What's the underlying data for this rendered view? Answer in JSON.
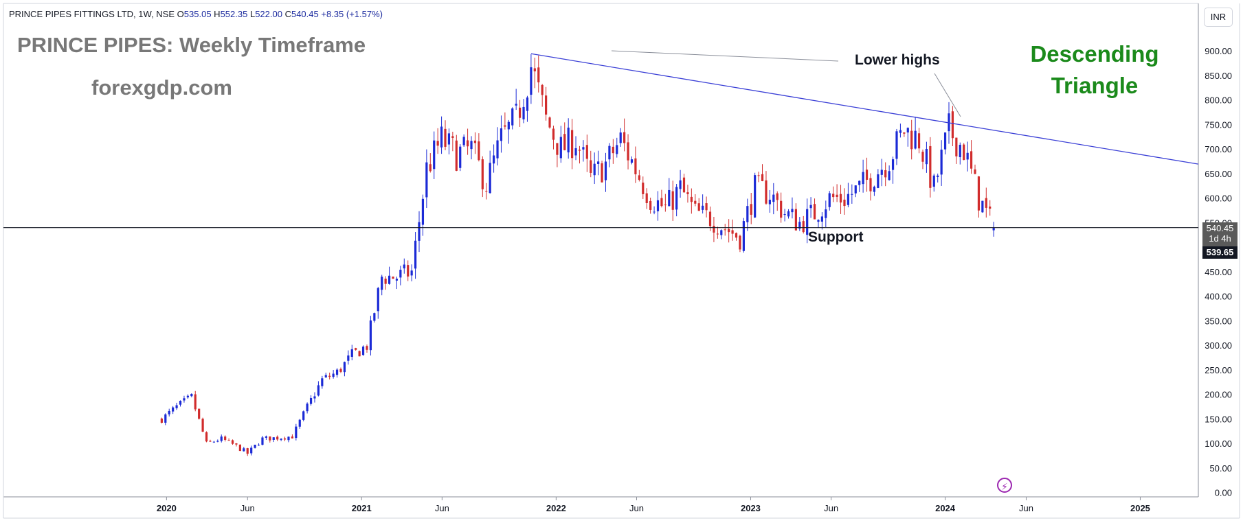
{
  "header": {
    "symbol": "PRINCE PIPES FITTINGS LTD, 1W, NSE",
    "o_label": "O",
    "o_value": "535.05",
    "h_label": "H",
    "h_value": "552.35",
    "l_label": "L",
    "l_value": "522.00",
    "c_label": "C",
    "c_value": "540.45",
    "change": "+8.35 (+1.57%)"
  },
  "overlay": {
    "title": "PRINCE PIPES: Weekly Timeframe",
    "website": "forexgdp.com",
    "pattern_line1": "Descending",
    "pattern_line2": "Triangle",
    "lower_highs": "Lower highs",
    "support": "Support"
  },
  "scale": {
    "currency_button": "INR",
    "last_price": "540.45",
    "countdown": "1d 4h",
    "crosshair_price": "539.65"
  },
  "colors": {
    "up": "#1b2ad6",
    "down": "#d12c2c",
    "trendline": "#3a3fd6",
    "support_line": "#131722",
    "pattern_text": "#1b8a1b",
    "watermark_text": "#787878"
  },
  "icons": {
    "flash": "lightning-icon"
  },
  "chart_data": {
    "type": "candlestick",
    "timeframe": "1W",
    "y_ticks": [
      "0.00",
      "50.00",
      "100.00",
      "150.00",
      "200.00",
      "250.00",
      "300.00",
      "350.00",
      "400.00",
      "450.00",
      "500.00",
      "550.00",
      "600.00",
      "650.00",
      "700.00",
      "750.00",
      "800.00",
      "850.00",
      "900.00"
    ],
    "ylim": [
      0,
      960
    ],
    "x_ticks": [
      {
        "label": "2020",
        "date": "2020-01-01",
        "bold": true
      },
      {
        "label": "Jun",
        "date": "2020-06-01",
        "bold": false
      },
      {
        "label": "2021",
        "date": "2021-01-01",
        "bold": true
      },
      {
        "label": "Jun",
        "date": "2021-06-01",
        "bold": false
      },
      {
        "label": "2022",
        "date": "2022-01-01",
        "bold": true
      },
      {
        "label": "Jun",
        "date": "2022-06-01",
        "bold": false
      },
      {
        "label": "2023",
        "date": "2023-01-01",
        "bold": true
      },
      {
        "label": "Jun",
        "date": "2023-06-01",
        "bold": false
      },
      {
        "label": "2024",
        "date": "2024-01-01",
        "bold": true
      },
      {
        "label": "Jun",
        "date": "2024-06-01",
        "bold": false
      },
      {
        "label": "2025",
        "date": "2025-01-01",
        "bold": true
      }
    ],
    "x_range": [
      "2019-03-01",
      "2025-04-20"
    ],
    "path_points": [
      [
        "2019-12-23",
        150
      ],
      [
        "2020-01-20",
        175
      ],
      [
        "2020-02-17",
        195
      ],
      [
        "2020-03-16",
        100
      ],
      [
        "2020-04-13",
        110
      ],
      [
        "2020-05-11",
        95
      ],
      [
        "2020-06-01",
        80
      ],
      [
        "2020-06-29",
        110
      ],
      [
        "2020-07-27",
        112
      ],
      [
        "2020-08-24",
        115
      ],
      [
        "2020-09-21",
        175
      ],
      [
        "2020-10-19",
        230
      ],
      [
        "2020-11-16",
        245
      ],
      [
        "2020-12-14",
        280
      ],
      [
        "2021-01-11",
        300
      ],
      [
        "2021-02-08",
        440
      ],
      [
        "2021-03-08",
        440
      ],
      [
        "2021-04-05",
        450
      ],
      [
        "2021-05-03",
        660
      ],
      [
        "2021-05-31",
        720
      ],
      [
        "2021-06-28",
        690
      ],
      [
        "2021-07-26",
        700
      ],
      [
        "2021-08-23",
        630
      ],
      [
        "2021-09-20",
        720
      ],
      [
        "2021-10-18",
        760
      ],
      [
        "2021-11-15",
        870
      ],
      [
        "2021-12-13",
        760
      ],
      [
        "2022-01-10",
        700
      ],
      [
        "2022-02-07",
        720
      ],
      [
        "2022-03-07",
        640
      ],
      [
        "2022-04-04",
        670
      ],
      [
        "2022-05-02",
        720
      ],
      [
        "2022-05-30",
        660
      ],
      [
        "2022-06-27",
        600
      ],
      [
        "2022-07-25",
        580
      ],
      [
        "2022-08-22",
        620
      ],
      [
        "2022-09-19",
        570
      ],
      [
        "2022-10-17",
        560
      ],
      [
        "2022-11-14",
        540
      ],
      [
        "2022-12-12",
        520
      ],
      [
        "2023-01-09",
        620
      ],
      [
        "2023-02-06",
        610
      ],
      [
        "2023-03-06",
        570
      ],
      [
        "2023-04-03",
        550
      ],
      [
        "2023-05-01",
        570
      ],
      [
        "2023-05-29",
        600
      ],
      [
        "2023-06-26",
        600
      ],
      [
        "2023-07-24",
        620
      ],
      [
        "2023-08-21",
        650
      ],
      [
        "2023-09-18",
        680
      ],
      [
        "2023-10-16",
        740
      ],
      [
        "2023-11-13",
        720
      ],
      [
        "2023-12-11",
        620
      ],
      [
        "2024-01-08",
        740
      ],
      [
        "2024-02-05",
        700
      ],
      [
        "2024-03-04",
        600
      ],
      [
        "2024-04-01",
        540
      ]
    ],
    "last_candle": {
      "date": "2024-04-01",
      "open": 535.05,
      "high": 552.35,
      "low": 522.0,
      "close": 540.45
    },
    "trendline": {
      "from": [
        "2021-11-15",
        895
      ],
      "to": [
        "2025-04-20",
        670
      ]
    },
    "support_level": 540.45
  }
}
